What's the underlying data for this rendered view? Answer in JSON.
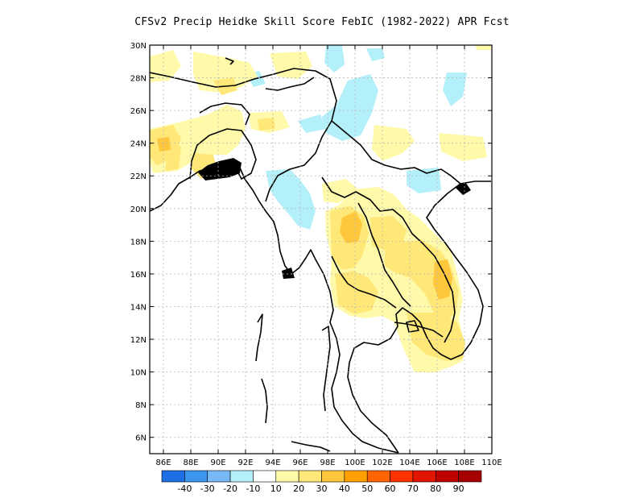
{
  "title": "CFSv2 Precip Heidke Skill Score FebIC (1982-2022) APR Fcst",
  "map": {
    "lon_range": [
      85,
      110
    ],
    "lat_range": [
      5,
      30
    ],
    "lon_ticks": [
      "86E",
      "88E",
      "90E",
      "92E",
      "94E",
      "96E",
      "98E",
      "100E",
      "102E",
      "104E",
      "106E",
      "108E",
      "110E"
    ],
    "lat_ticks": [
      "30N",
      "28N",
      "26N",
      "24N",
      "22N",
      "20N",
      "18N",
      "16N",
      "14N",
      "12N",
      "10N",
      "8N",
      "6N"
    ],
    "grid": true
  },
  "colorbar": {
    "colors": [
      "#1e6ee6",
      "#3c96f0",
      "#78b9f5",
      "#b4f0fa",
      "#ffffff",
      "#fffaaa",
      "#ffe878",
      "#ffc83c",
      "#ffa000",
      "#ff6400",
      "#ff3200",
      "#e11400",
      "#c00000",
      "#a50000"
    ],
    "labels": [
      "-40",
      "-30",
      "-20",
      "-10",
      "10",
      "20",
      "30",
      "40",
      "50",
      "60",
      "70",
      "80",
      "90"
    ]
  }
}
